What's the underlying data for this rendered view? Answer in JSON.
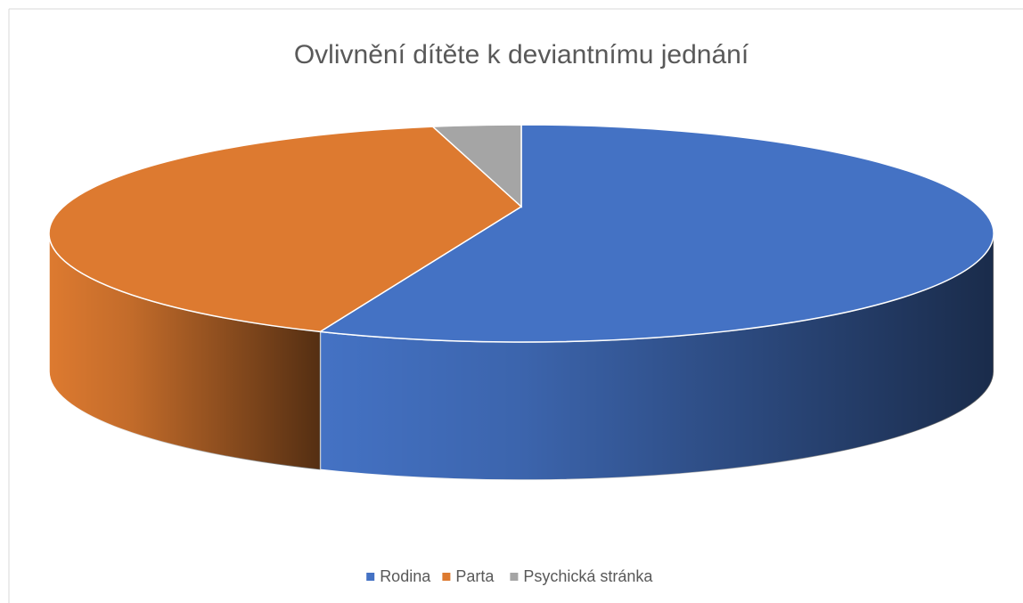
{
  "chart_data": {
    "type": "pie",
    "title": "Ovlivnění dítěte k deviantnímu jednání",
    "categories": [
      "Rodina",
      "Parta",
      "Psychická stránka"
    ],
    "values": [
      57,
      40,
      3
    ],
    "colors": [
      "#4472c4",
      "#dd7a30",
      "#a5a5a5"
    ],
    "legend": "bottom"
  }
}
